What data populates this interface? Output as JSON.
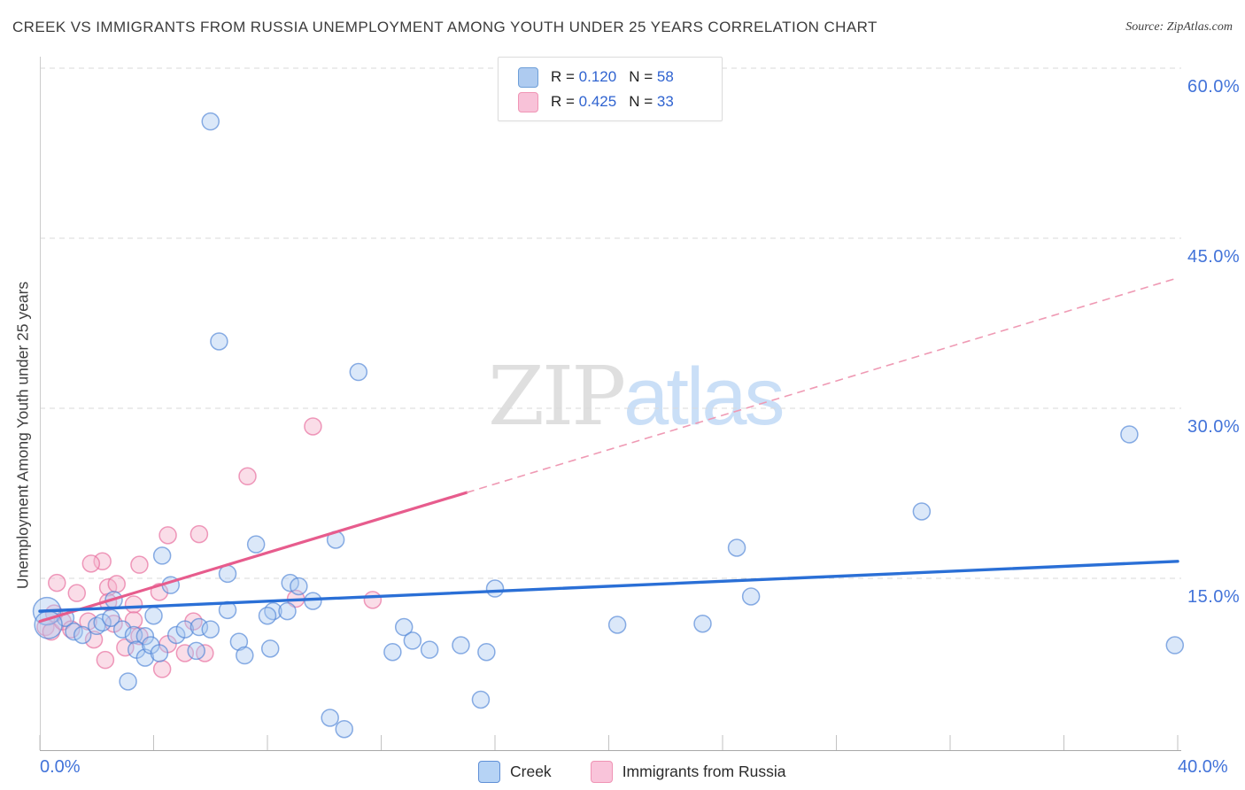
{
  "title": "CREEK VS IMMIGRANTS FROM RUSSIA UNEMPLOYMENT AMONG YOUTH UNDER 25 YEARS CORRELATION CHART",
  "source": "Source: ZipAtlas.com",
  "watermark": {
    "zip": "ZIP",
    "atlas": "atlas"
  },
  "legend_box": {
    "rows": [
      {
        "series": "Creek",
        "r_label": "R = ",
        "r_value": "0.120",
        "n_label": "N = ",
        "n_value": "58"
      },
      {
        "series": "Immigrants from Russia",
        "r_label": "R = ",
        "r_value": "0.425",
        "n_label": "N = ",
        "n_value": "33"
      }
    ]
  },
  "bottom_legend": {
    "creek_label": "Creek",
    "russia_label": "Immigrants from Russia"
  },
  "y_axis": {
    "title": "Unemployment Among Youth under 25 years",
    "tick_labels": [
      "60.0%",
      "45.0%",
      "30.0%",
      "15.0%"
    ],
    "tick_values": [
      60,
      45,
      30,
      15
    ]
  },
  "x_axis": {
    "min_label": "0.0%",
    "max_label": "40.0%",
    "tick_step_pct": 4
  },
  "colors": {
    "creek_fill": "#a9c8f0",
    "creek_stroke": "#4d82d6",
    "russia_fill": "#f5b3cd",
    "russia_stroke": "#e8709f",
    "creek_trend": "#2a6fd6",
    "russia_trend": "#e75c8d",
    "russia_trend_dashed": "#ef9ab4",
    "axis_label_blue": "#4273d9",
    "gridline": "#d9d9d9"
  },
  "chart_data": {
    "type": "scatter",
    "title": "Creek vs Immigrants from Russia Unemployment Among Youth under 25 years",
    "xlabel": "",
    "ylabel": "Unemployment Among Youth under 25 years",
    "xlim": [
      0,
      40
    ],
    "ylim": [
      0,
      62
    ],
    "grid": "horizontal-dashed",
    "legend_position": "bottom-center",
    "series": [
      {
        "name": "Creek",
        "R": 0.12,
        "N": 58,
        "points": [
          [
            6.0,
            55.3
          ],
          [
            6.3,
            35.9
          ],
          [
            11.2,
            33.2
          ],
          [
            38.3,
            27.7
          ],
          [
            31.0,
            20.9
          ],
          [
            10.4,
            18.4
          ],
          [
            7.6,
            18.0
          ],
          [
            4.3,
            17.0
          ],
          [
            24.5,
            17.7
          ],
          [
            16.0,
            14.1
          ],
          [
            4.6,
            14.4
          ],
          [
            6.6,
            15.4
          ],
          [
            8.8,
            14.6
          ],
          [
            9.1,
            14.3
          ],
          [
            9.6,
            13.0
          ],
          [
            8.2,
            12.1
          ],
          [
            8.7,
            12.1
          ],
          [
            25.0,
            13.4
          ],
          [
            23.3,
            11.0
          ],
          [
            20.3,
            10.9
          ],
          [
            39.9,
            9.1
          ],
          [
            12.8,
            10.7
          ],
          [
            13.1,
            9.5
          ],
          [
            13.7,
            8.7
          ],
          [
            12.4,
            8.5
          ],
          [
            14.8,
            9.1
          ],
          [
            15.7,
            8.5
          ],
          [
            15.5,
            4.3
          ],
          [
            10.2,
            2.7
          ],
          [
            10.7,
            1.7
          ],
          [
            6.6,
            12.2
          ],
          [
            7.0,
            9.4
          ],
          [
            7.2,
            8.2
          ],
          [
            8.0,
            11.7
          ],
          [
            8.1,
            8.8
          ],
          [
            0.9,
            11.5
          ],
          [
            1.2,
            10.3
          ],
          [
            1.5,
            10.0
          ],
          [
            2.0,
            10.8
          ],
          [
            2.2,
            11.1
          ],
          [
            2.5,
            11.5
          ],
          [
            2.6,
            13.1
          ],
          [
            2.9,
            10.5
          ],
          [
            3.3,
            10.0
          ],
          [
            3.7,
            9.9
          ],
          [
            4.0,
            11.7
          ],
          [
            3.4,
            8.7
          ],
          [
            3.7,
            8.0
          ],
          [
            3.9,
            9.1
          ],
          [
            4.2,
            8.4
          ],
          [
            4.8,
            10.0
          ],
          [
            5.1,
            10.5
          ],
          [
            5.6,
            10.7
          ],
          [
            6.0,
            10.5
          ],
          [
            3.1,
            5.9
          ],
          [
            5.5,
            8.6
          ],
          [
            0.25,
            12.1
          ],
          [
            0.3,
            10.9
          ]
        ],
        "large_points": [
          [
            0.25,
            12.1
          ],
          [
            0.3,
            10.9
          ]
        ],
        "trend": {
          "x": [
            0,
            40
          ],
          "y": [
            12.1,
            16.5
          ],
          "style": "solid"
        }
      },
      {
        "name": "Immigrants from Russia",
        "R": 0.425,
        "N": 33,
        "points": [
          [
            9.6,
            28.4
          ],
          [
            7.3,
            24.0
          ],
          [
            4.5,
            18.8
          ],
          [
            5.6,
            18.9
          ],
          [
            2.2,
            16.5
          ],
          [
            3.5,
            16.2
          ],
          [
            1.8,
            16.3
          ],
          [
            0.6,
            14.6
          ],
          [
            1.3,
            13.7
          ],
          [
            2.4,
            14.2
          ],
          [
            2.7,
            14.5
          ],
          [
            3.3,
            12.7
          ],
          [
            2.4,
            12.9
          ],
          [
            4.2,
            13.8
          ],
          [
            9.0,
            13.2
          ],
          [
            11.7,
            13.1
          ],
          [
            0.2,
            10.7
          ],
          [
            0.4,
            10.3
          ],
          [
            0.8,
            11.2
          ],
          [
            1.1,
            10.5
          ],
          [
            1.7,
            11.2
          ],
          [
            3.3,
            11.3
          ],
          [
            3.5,
            9.9
          ],
          [
            4.5,
            9.2
          ],
          [
            4.3,
            7.0
          ],
          [
            5.1,
            8.4
          ],
          [
            5.8,
            8.4
          ],
          [
            5.4,
            11.2
          ],
          [
            2.3,
            7.8
          ],
          [
            0.5,
            11.9
          ],
          [
            1.9,
            9.6
          ],
          [
            2.6,
            11.0
          ],
          [
            3.0,
            8.9
          ]
        ],
        "trend": {
          "x": [
            0,
            40
          ],
          "y": [
            11.2,
            41.5
          ],
          "style": "solid-then-dashed",
          "solid_until_x": 15
        }
      }
    ]
  }
}
